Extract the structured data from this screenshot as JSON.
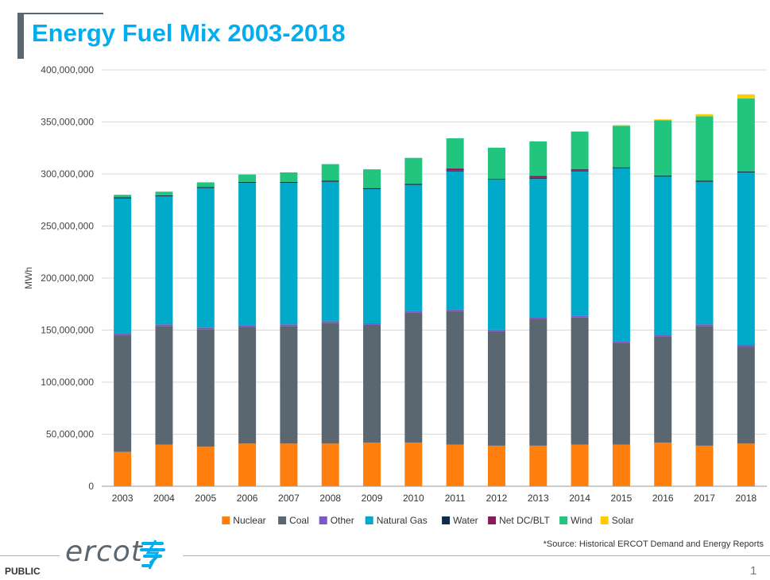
{
  "slide": {
    "title": "Energy Fuel Mix 2003-2018",
    "source": "*Source: Historical ERCOT Demand and Energy Reports",
    "classification": "PUBLIC",
    "page_number": "1",
    "logo_text": "ercot"
  },
  "colors": {
    "title": "#00aeef",
    "Nuclear": "#ff7f0e",
    "Coal": "#5b6770",
    "Other": "#7b57c7",
    "Natural Gas": "#00aac8",
    "Water": "#0d2b4a",
    "Net DC/BLT": "#8b1a5a",
    "Wind": "#22c57e",
    "Solar": "#ffcc00"
  },
  "chart_data": {
    "type": "bar",
    "stacked": true,
    "title": "",
    "xlabel": "",
    "ylabel": "MWh",
    "ylim": [
      0,
      400000000
    ],
    "yticks": [
      0,
      50000000,
      100000000,
      150000000,
      200000000,
      250000000,
      300000000,
      350000000,
      400000000
    ],
    "ytick_labels": [
      "0",
      "50,000,000",
      "100,000,000",
      "150,000,000",
      "200,000,000",
      "250,000,000",
      "300,000,000",
      "350,000,000",
      "400,000,000"
    ],
    "grid": true,
    "legend_position": "bottom",
    "categories": [
      "2003",
      "2004",
      "2005",
      "2006",
      "2007",
      "2008",
      "2009",
      "2010",
      "2011",
      "2012",
      "2013",
      "2014",
      "2015",
      "2016",
      "2017",
      "2018"
    ],
    "series": [
      {
        "name": "Nuclear",
        "values": [
          33000000,
          40000000,
          38000000,
          41000000,
          41000000,
          41000000,
          42000000,
          42000000,
          40000000,
          39000000,
          39000000,
          40000000,
          40000000,
          42000000,
          39000000,
          41000000
        ]
      },
      {
        "name": "Coal",
        "values": [
          112000000,
          114000000,
          113000000,
          112000000,
          113000000,
          116000000,
          113000000,
          125000000,
          128000000,
          110000000,
          122000000,
          122000000,
          98000000,
          102000000,
          115000000,
          93000000
        ]
      },
      {
        "name": "Other",
        "values": [
          1500000,
          1500000,
          1500000,
          1500000,
          1500000,
          1500000,
          1500000,
          1500000,
          1500000,
          1500000,
          1500000,
          1500000,
          1500000,
          1500000,
          1500000,
          1500000
        ]
      },
      {
        "name": "Natural Gas",
        "values": [
          130000000,
          123000000,
          134000000,
          137000000,
          136000000,
          134000000,
          129000000,
          121000000,
          133000000,
          144000000,
          133000000,
          139000000,
          166000000,
          152000000,
          137000000,
          166000000
        ]
      },
      {
        "name": "Water",
        "values": [
          1000000,
          1000000,
          1000000,
          1000000,
          1000000,
          1000000,
          1000000,
          1000000,
          800000,
          800000,
          800000,
          800000,
          900000,
          1000000,
          1000000,
          1000000
        ]
      },
      {
        "name": "Net DC/BLT",
        "values": [
          0,
          0,
          0,
          0,
          0,
          0,
          0,
          0,
          2000000,
          0,
          2000000,
          1500000,
          0,
          0,
          0,
          0
        ]
      },
      {
        "name": "Wind",
        "values": [
          2500000,
          3500000,
          4500000,
          7000000,
          9000000,
          16000000,
          18000000,
          25000000,
          29000000,
          30000000,
          33000000,
          36000000,
          40000000,
          53000000,
          62000000,
          70000000
        ]
      },
      {
        "name": "Solar",
        "values": [
          0,
          0,
          0,
          0,
          0,
          0,
          0,
          0,
          0,
          0,
          0,
          0,
          600000,
          1000000,
          2000000,
          4000000
        ]
      }
    ]
  }
}
